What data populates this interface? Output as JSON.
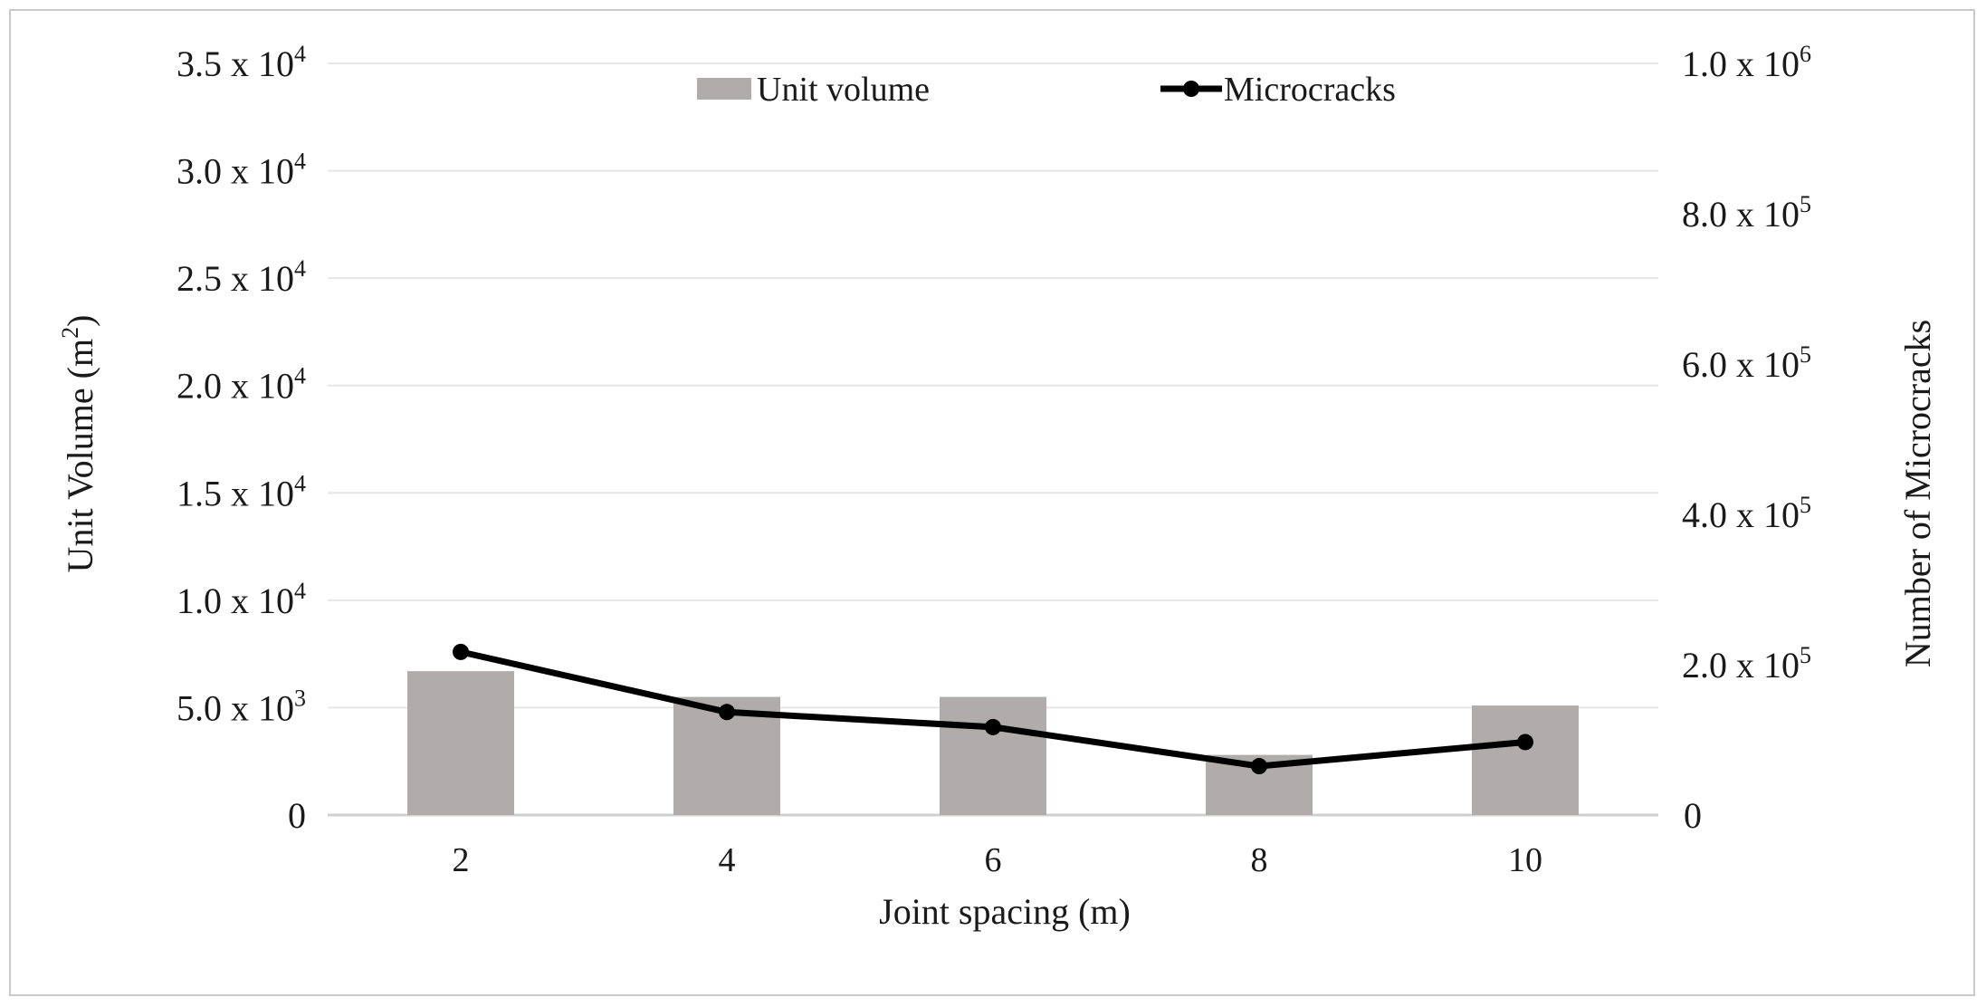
{
  "chart_data": {
    "type": "bar+line",
    "xlabel": "Joint spacing (m)",
    "ylabel_left_base": "Unit Volume (m",
    "ylabel_left_sup": "2",
    "ylabel_left_end": ")",
    "ylabel_right": "Number of Microcracks",
    "categories": [
      "2",
      "4",
      "6",
      "8",
      "10"
    ],
    "ylim_left": [
      0,
      35000
    ],
    "ylim_right": [
      0,
      1000000
    ],
    "left_ticks": [
      {
        "value": 0,
        "mant": "0",
        "exp": ""
      },
      {
        "value": 5000,
        "mant": "5.0 x 10",
        "exp": "3"
      },
      {
        "value": 10000,
        "mant": "1.0 x 10",
        "exp": "4"
      },
      {
        "value": 15000,
        "mant": "1.5 x 10",
        "exp": "4"
      },
      {
        "value": 20000,
        "mant": "2.0 x 10",
        "exp": "4"
      },
      {
        "value": 25000,
        "mant": "2.5 x 10",
        "exp": "4"
      },
      {
        "value": 30000,
        "mant": "3.0 x 10",
        "exp": "4"
      },
      {
        "value": 35000,
        "mant": "3.5 x 10",
        "exp": "4"
      }
    ],
    "right_ticks": [
      {
        "value": 0,
        "mant": "0",
        "exp": ""
      },
      {
        "value": 200000,
        "mant": "2.0 x 10",
        "exp": "5"
      },
      {
        "value": 400000,
        "mant": "4.0 x 10",
        "exp": "5"
      },
      {
        "value": 600000,
        "mant": "6.0 x 10",
        "exp": "5"
      },
      {
        "value": 800000,
        "mant": "8.0 x 10",
        "exp": "5"
      },
      {
        "value": 1000000,
        "mant": "1.0 x 10",
        "exp": "6"
      }
    ],
    "series": [
      {
        "name": "Unit volume",
        "type": "bar",
        "axis": "left",
        "values": [
          6700,
          5500,
          5500,
          2800,
          5100
        ]
      },
      {
        "name": "Microcracks",
        "type": "line",
        "axis": "right",
        "values": [
          217000,
          137000,
          117000,
          65000,
          97000
        ]
      }
    ],
    "legend_position": "top-center",
    "grid": true,
    "colors": {
      "bar": "#b1acac",
      "line": "#000000",
      "grid": "#e6e6e6",
      "axis": "#d0d0d0"
    }
  }
}
